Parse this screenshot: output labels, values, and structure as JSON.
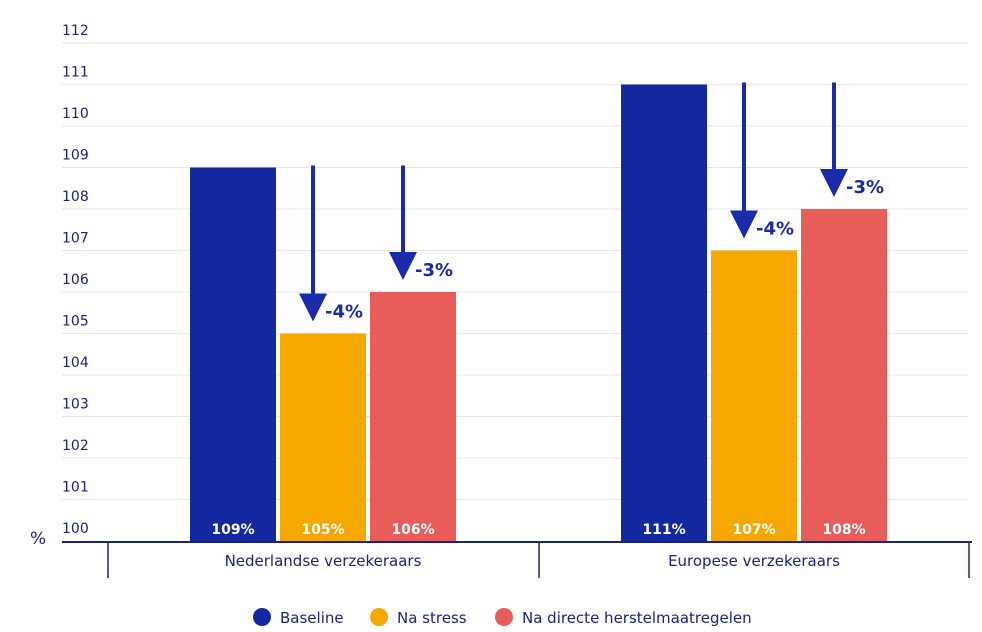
{
  "chart_data": {
    "type": "bar",
    "ylabel": "%",
    "ylim": [
      100,
      112
    ],
    "yticks": [
      100,
      101,
      102,
      103,
      104,
      105,
      106,
      107,
      108,
      109,
      110,
      111,
      112
    ],
    "grid": true,
    "legend_position": "bottom",
    "categories": [
      "Nederlandse verzekeraars",
      "Europese verzekeraars"
    ],
    "series": [
      {
        "name": "Baseline",
        "color": "#1428a0",
        "values": [
          109,
          111
        ],
        "labels": [
          "109%",
          "111%"
        ]
      },
      {
        "name": "Na stress",
        "color": "#f7a800",
        "values": [
          105,
          107
        ],
        "labels": [
          "105%",
          "107%"
        ]
      },
      {
        "name": "Na directe herstelmaatregelen",
        "color": "#e85c5a",
        "values": [
          106,
          108
        ],
        "labels": [
          "106%",
          "108%"
        ]
      }
    ],
    "annotations": [
      {
        "category": 0,
        "series": 1,
        "text": "-4%"
      },
      {
        "category": 0,
        "series": 2,
        "text": "-3%"
      },
      {
        "category": 1,
        "series": 1,
        "text": "-4%"
      },
      {
        "category": 1,
        "series": 2,
        "text": "-3%"
      }
    ]
  }
}
